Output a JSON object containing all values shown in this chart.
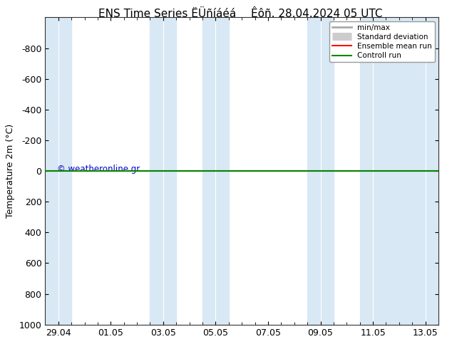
{
  "title_left": "ENS Time Series ËÜñíáéá",
  "title_right": "Êôñ. 28.04.2024 05 UTC",
  "ylabel": "Temperature 2m (°C)",
  "ylim_bottom": 1000,
  "ylim_top": -1000,
  "yticks": [
    -800,
    -600,
    -400,
    -200,
    0,
    200,
    400,
    600,
    800,
    1000
  ],
  "x_tick_labels": [
    "29.04",
    "01.05",
    "03.05",
    "05.05",
    "07.05",
    "09.05",
    "11.05",
    "13.05"
  ],
  "x_tick_positions": [
    0,
    2,
    4,
    6,
    8,
    10,
    12,
    14
  ],
  "background_color": "#ffffff",
  "plot_bg_color": "#ffffff",
  "blue_stripe_color": "#d8e8f5",
  "blue_stripe_spans": [
    [
      -0.5,
      0.5
    ],
    [
      3.5,
      4.5
    ],
    [
      5.5,
      6.5
    ],
    [
      9.5,
      10.5
    ],
    [
      11.5,
      14.5
    ]
  ],
  "copyright_text": "© weatheronline.gr",
  "copyright_color": "#0000cc",
  "legend_items": [
    {
      "label": "min/max",
      "color": "#aaaaaa",
      "lw": 2,
      "style": "solid"
    },
    {
      "label": "Standard deviation",
      "color": "#cccccc",
      "lw": 8,
      "style": "solid"
    },
    {
      "label": "Ensemble mean run",
      "color": "#ff0000",
      "lw": 1.5,
      "style": "solid"
    },
    {
      "label": "Controll run",
      "color": "#008800",
      "lw": 1.5,
      "style": "solid"
    }
  ],
  "control_run_y": 0,
  "ensemble_mean_y": 0,
  "xlim": [
    -0.5,
    14.5
  ],
  "title_fontsize": 11,
  "tick_fontsize": 9,
  "ylabel_fontsize": 9
}
